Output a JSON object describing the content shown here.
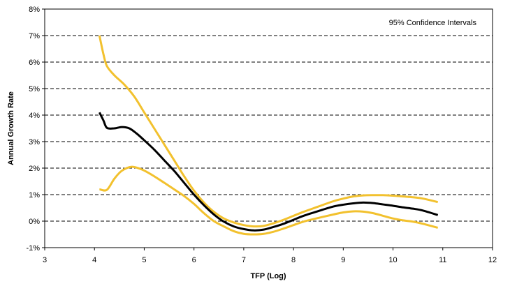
{
  "chart_data": {
    "type": "line",
    "title": "",
    "xlabel": "TFP (Log)",
    "ylabel": "Annual Growth Rate",
    "xlim": [
      3,
      12
    ],
    "ylim": [
      -1,
      8
    ],
    "x_ticks": [
      "3",
      "4",
      "5",
      "6",
      "7",
      "8",
      "9",
      "10",
      "11",
      "12"
    ],
    "y_ticks": [
      "-1%",
      "0%",
      "1%",
      "2%",
      "3%",
      "4%",
      "5%",
      "6%",
      "7%",
      "8%"
    ],
    "grid": "horizontal-dashed",
    "annotation": "95% Confidence Intervals",
    "colors": {
      "estimate": "#000000",
      "confidence": "#F2C12E",
      "grid": "#000000"
    },
    "series": [
      {
        "role": "upper",
        "points": [
          [
            4.1,
            7.0
          ],
          [
            4.18,
            6.3
          ],
          [
            4.25,
            5.85
          ],
          [
            4.4,
            5.5
          ],
          [
            4.6,
            5.15
          ],
          [
            4.8,
            4.7
          ],
          [
            5.0,
            4.1
          ],
          [
            5.2,
            3.5
          ],
          [
            5.4,
            2.9
          ],
          [
            5.6,
            2.3
          ],
          [
            5.8,
            1.7
          ],
          [
            6.0,
            1.15
          ],
          [
            6.2,
            0.7
          ],
          [
            6.4,
            0.35
          ],
          [
            6.6,
            0.1
          ],
          [
            6.8,
            -0.05
          ],
          [
            7.0,
            -0.15
          ],
          [
            7.2,
            -0.2
          ],
          [
            7.4,
            -0.18
          ],
          [
            7.6,
            -0.08
          ],
          [
            7.8,
            0.05
          ],
          [
            8.0,
            0.2
          ],
          [
            8.2,
            0.35
          ],
          [
            8.5,
            0.55
          ],
          [
            8.8,
            0.75
          ],
          [
            9.0,
            0.85
          ],
          [
            9.2,
            0.93
          ],
          [
            9.4,
            0.97
          ],
          [
            9.6,
            0.98
          ],
          [
            9.8,
            0.98
          ],
          [
            10.0,
            0.96
          ],
          [
            10.2,
            0.93
          ],
          [
            10.4,
            0.9
          ],
          [
            10.6,
            0.85
          ],
          [
            10.9,
            0.72
          ]
        ]
      },
      {
        "role": "estimate",
        "points": [
          [
            4.1,
            4.1
          ],
          [
            4.18,
            3.8
          ],
          [
            4.25,
            3.52
          ],
          [
            4.4,
            3.5
          ],
          [
            4.55,
            3.55
          ],
          [
            4.7,
            3.5
          ],
          [
            4.85,
            3.3
          ],
          [
            5.0,
            3.05
          ],
          [
            5.2,
            2.7
          ],
          [
            5.4,
            2.3
          ],
          [
            5.6,
            1.9
          ],
          [
            5.8,
            1.45
          ],
          [
            6.0,
            1.0
          ],
          [
            6.2,
            0.6
          ],
          [
            6.4,
            0.25
          ],
          [
            6.6,
            -0.02
          ],
          [
            6.8,
            -0.2
          ],
          [
            7.0,
            -0.3
          ],
          [
            7.2,
            -0.35
          ],
          [
            7.4,
            -0.32
          ],
          [
            7.6,
            -0.22
          ],
          [
            7.8,
            -0.1
          ],
          [
            8.0,
            0.05
          ],
          [
            8.2,
            0.2
          ],
          [
            8.5,
            0.38
          ],
          [
            8.8,
            0.55
          ],
          [
            9.0,
            0.62
          ],
          [
            9.2,
            0.67
          ],
          [
            9.4,
            0.7
          ],
          [
            9.6,
            0.68
          ],
          [
            9.8,
            0.63
          ],
          [
            10.0,
            0.58
          ],
          [
            10.2,
            0.52
          ],
          [
            10.4,
            0.47
          ],
          [
            10.6,
            0.4
          ],
          [
            10.9,
            0.23
          ]
        ]
      },
      {
        "role": "lower",
        "points": [
          [
            4.1,
            1.2
          ],
          [
            4.25,
            1.18
          ],
          [
            4.4,
            1.6
          ],
          [
            4.55,
            1.9
          ],
          [
            4.75,
            2.05
          ],
          [
            4.95,
            1.95
          ],
          [
            5.15,
            1.75
          ],
          [
            5.4,
            1.45
          ],
          [
            5.6,
            1.2
          ],
          [
            5.8,
            0.95
          ],
          [
            6.0,
            0.65
          ],
          [
            6.2,
            0.3
          ],
          [
            6.4,
            0.0
          ],
          [
            6.6,
            -0.2
          ],
          [
            6.8,
            -0.38
          ],
          [
            7.0,
            -0.48
          ],
          [
            7.2,
            -0.5
          ],
          [
            7.4,
            -0.48
          ],
          [
            7.6,
            -0.4
          ],
          [
            7.8,
            -0.28
          ],
          [
            8.0,
            -0.15
          ],
          [
            8.2,
            -0.02
          ],
          [
            8.5,
            0.12
          ],
          [
            8.8,
            0.25
          ],
          [
            9.0,
            0.33
          ],
          [
            9.2,
            0.37
          ],
          [
            9.4,
            0.36
          ],
          [
            9.6,
            0.3
          ],
          [
            9.8,
            0.2
          ],
          [
            10.0,
            0.1
          ],
          [
            10.2,
            0.03
          ],
          [
            10.4,
            -0.02
          ],
          [
            10.6,
            -0.1
          ],
          [
            10.9,
            -0.25
          ]
        ]
      }
    ]
  }
}
